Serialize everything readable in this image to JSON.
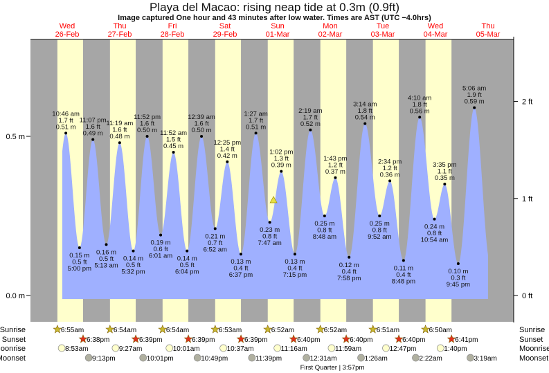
{
  "title": "Playa del Macao: rising  neap tide at 0.3m (0.9ft)",
  "subtitle": "Image captured One hour and 43 minutes after low water. Times are AST (UTC −4.0hrs)",
  "colors": {
    "tide_fill": "#9fb0ff",
    "day": "#ffffcc",
    "night": "#a6a6a6",
    "day_label": "#ff0000",
    "sunrise_icon": "#c8b830",
    "sunset_icon": "#e03020",
    "moonrise_icon": "#ffffcc",
    "moonset_icon": "#b0b0a0",
    "current_marker": "#e8e040"
  },
  "chart_data": {
    "type": "area",
    "title": "Playa del Macao: rising  neap tide at 0.3m (0.9ft)",
    "left_axis": {
      "unit": "m",
      "ticks": [
        "0.0 m",
        "0.5 m"
      ],
      "tick_values": [
        0,
        0.5
      ]
    },
    "right_axis": {
      "unit": "ft",
      "ticks": [
        "0 ft",
        "1 ft",
        "2 ft"
      ],
      "tick_values": [
        0,
        1,
        2
      ]
    },
    "days": [
      {
        "dow": "Wed",
        "date": "26-Feb"
      },
      {
        "dow": "Thu",
        "date": "27-Feb"
      },
      {
        "dow": "Fri",
        "date": "28-Feb"
      },
      {
        "dow": "Sat",
        "date": "29-Feb"
      },
      {
        "dow": "Sun",
        "date": "01-Mar"
      },
      {
        "dow": "Mon",
        "date": "02-Mar"
      },
      {
        "dow": "Tue",
        "date": "03-Mar"
      },
      {
        "dow": "Wed",
        "date": "04-Mar"
      },
      {
        "dow": "Thu",
        "date": "05-Mar"
      }
    ],
    "extremes": [
      {
        "day": 0,
        "time": "10:46 am",
        "type": "high",
        "ft": "1.7 ft",
        "m": "0.51 m",
        "value": 0.51
      },
      {
        "day": 0,
        "time": "5:00 pm",
        "type": "low",
        "ft": "0.5 ft",
        "m": "0.15 m",
        "value": 0.15
      },
      {
        "day": 0,
        "time": "11:07 pm",
        "type": "high",
        "ft": "1.6 ft",
        "m": "0.49 m",
        "value": 0.49
      },
      {
        "day": 1,
        "time": "5:13 am",
        "type": "low",
        "ft": "0.5 ft",
        "m": "0.16 m",
        "value": 0.16
      },
      {
        "day": 1,
        "time": "11:19 am",
        "type": "high",
        "ft": "1.6 ft",
        "m": "0.48 m",
        "value": 0.48
      },
      {
        "day": 1,
        "time": "5:32 pm",
        "type": "low",
        "ft": "0.5 ft",
        "m": "0.14 m",
        "value": 0.14
      },
      {
        "day": 1,
        "time": "11:52 pm",
        "type": "high",
        "ft": "1.6 ft",
        "m": "0.50 m",
        "value": 0.5
      },
      {
        "day": 2,
        "time": "6:01 am",
        "type": "low",
        "ft": "0.6 ft",
        "m": "0.19 m",
        "value": 0.19
      },
      {
        "day": 2,
        "time": "11:52 am",
        "type": "high",
        "ft": "1.5 ft",
        "m": "0.45 m",
        "value": 0.45
      },
      {
        "day": 2,
        "time": "6:04 pm",
        "type": "low",
        "ft": "0.5 ft",
        "m": "0.14 m",
        "value": 0.14
      },
      {
        "day": 3,
        "time": "12:39 am",
        "type": "high",
        "ft": "1.6 ft",
        "m": "0.50 m",
        "value": 0.5
      },
      {
        "day": 3,
        "time": "6:52 am",
        "type": "low",
        "ft": "0.7 ft",
        "m": "0.21 m",
        "value": 0.21
      },
      {
        "day": 3,
        "time": "12:25 pm",
        "type": "high",
        "ft": "1.4 ft",
        "m": "0.42 m",
        "value": 0.42
      },
      {
        "day": 3,
        "time": "6:37 pm",
        "type": "low",
        "ft": "0.4 ft",
        "m": "0.13 m",
        "value": 0.13
      },
      {
        "day": 4,
        "time": "1:27 am",
        "type": "high",
        "ft": "1.7 ft",
        "m": "0.51 m",
        "value": 0.51
      },
      {
        "day": 4,
        "time": "7:47 am",
        "type": "low",
        "ft": "0.8 ft",
        "m": "0.23 m",
        "value": 0.23
      },
      {
        "day": 4,
        "time": "1:02 pm",
        "type": "high",
        "ft": "1.3 ft",
        "m": "0.39 m",
        "value": 0.39
      },
      {
        "day": 4,
        "time": "7:15 pm",
        "type": "low",
        "ft": "0.4 ft",
        "m": "0.13 m",
        "value": 0.13
      },
      {
        "day": 5,
        "time": "2:19 am",
        "type": "high",
        "ft": "1.7 ft",
        "m": "0.52 m",
        "value": 0.52
      },
      {
        "day": 5,
        "time": "8:48 am",
        "type": "low",
        "ft": "0.8 ft",
        "m": "0.25 m",
        "value": 0.25
      },
      {
        "day": 5,
        "time": "1:43 pm",
        "type": "high",
        "ft": "1.2 ft",
        "m": "0.37 m",
        "value": 0.37
      },
      {
        "day": 5,
        "time": "7:58 pm",
        "type": "low",
        "ft": "0.4 ft",
        "m": "0.12 m",
        "value": 0.12
      },
      {
        "day": 6,
        "time": "3:14 am",
        "type": "high",
        "ft": "1.8 ft",
        "m": "0.54 m",
        "value": 0.54
      },
      {
        "day": 6,
        "time": "9:52 am",
        "type": "low",
        "ft": "0.8 ft",
        "m": "0.25 m",
        "value": 0.25
      },
      {
        "day": 6,
        "time": "2:34 pm",
        "type": "high",
        "ft": "1.2 ft",
        "m": "0.36 m",
        "value": 0.36
      },
      {
        "day": 6,
        "time": "8:48 pm",
        "type": "low",
        "ft": "0.4 ft",
        "m": "0.11 m",
        "value": 0.11
      },
      {
        "day": 7,
        "time": "4:10 am",
        "type": "high",
        "ft": "1.8 ft",
        "m": "0.56 m",
        "value": 0.56
      },
      {
        "day": 7,
        "time": "10:54 am",
        "type": "low",
        "ft": "0.8 ft",
        "m": "0.24 m",
        "value": 0.24
      },
      {
        "day": 7,
        "time": "3:35 pm",
        "type": "high",
        "ft": "1.1 ft",
        "m": "0.35 m",
        "value": 0.35
      },
      {
        "day": 7,
        "time": "9:45 pm",
        "type": "low",
        "ft": "0.3 ft",
        "m": "0.10 m",
        "value": 0.1
      },
      {
        "day": 8,
        "time": "5:06 am",
        "type": "high",
        "ft": "1.9 ft",
        "m": "0.59 m",
        "value": 0.59
      }
    ],
    "current": {
      "day": 4,
      "time": "9:30 am",
      "value": 0.3
    }
  },
  "rows": {
    "labels": {
      "sunrise": "Sunrise",
      "sunset": "Sunset",
      "moonrise": "Moonrise",
      "moonset": "Moonset"
    },
    "sunrise": [
      {
        "day": 0,
        "t": "6:55am"
      },
      {
        "day": 1,
        "t": "6:54am"
      },
      {
        "day": 2,
        "t": "6:54am"
      },
      {
        "day": 3,
        "t": "6:53am"
      },
      {
        "day": 4,
        "t": "6:52am"
      },
      {
        "day": 5,
        "t": "6:52am"
      },
      {
        "day": 6,
        "t": "6:51am"
      },
      {
        "day": 7,
        "t": "6:50am"
      }
    ],
    "sunset": [
      {
        "day": 0,
        "t": "6:38pm"
      },
      {
        "day": 1,
        "t": "6:39pm"
      },
      {
        "day": 2,
        "t": "6:39pm"
      },
      {
        "day": 3,
        "t": "6:39pm"
      },
      {
        "day": 4,
        "t": "6:40pm"
      },
      {
        "day": 5,
        "t": "6:40pm"
      },
      {
        "day": 6,
        "t": "6:40pm"
      },
      {
        "day": 7,
        "t": "6:41pm"
      }
    ],
    "moonrise": [
      {
        "day": 0,
        "t": "8:53am"
      },
      {
        "day": 1,
        "t": "9:27am"
      },
      {
        "day": 2,
        "t": "10:01am"
      },
      {
        "day": 3,
        "t": "10:37am"
      },
      {
        "day": 4,
        "t": "11:16am"
      },
      {
        "day": 5,
        "t": "11:59am"
      },
      {
        "day": 6,
        "t": "12:47pm"
      },
      {
        "day": 7,
        "t": "1:40pm"
      }
    ],
    "moonset": [
      {
        "day": 0,
        "t": "9:13pm"
      },
      {
        "day": 1,
        "t": "10:01pm"
      },
      {
        "day": 2,
        "t": "10:49pm"
      },
      {
        "day": 3,
        "t": "11:39pm"
      },
      {
        "day": 5,
        "t": "12:31am"
      },
      {
        "day": 6,
        "t": "1:26am"
      },
      {
        "day": 7,
        "t": "2:22am"
      },
      {
        "day": 8,
        "t": "3:19am"
      }
    ],
    "moon_phase": "First Quarter | 3:57pm"
  }
}
